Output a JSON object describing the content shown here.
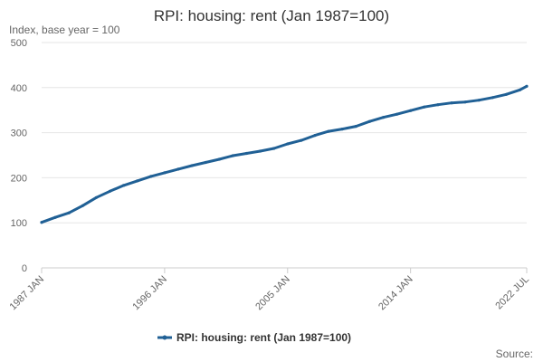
{
  "chart_data": {
    "type": "line",
    "title": "RPI: housing: rent (Jan 1987=100)",
    "ylabel": "Index, base year = 100",
    "ylim": [
      0,
      500
    ],
    "yticks": [
      0,
      100,
      200,
      300,
      400,
      500
    ],
    "xlim": [
      1987.0,
      2022.5
    ],
    "xticks": [
      {
        "label": "1987 JAN",
        "value": 1987.0
      },
      {
        "label": "1996 JAN",
        "value": 1996.0
      },
      {
        "label": "2005 JAN",
        "value": 2005.0
      },
      {
        "label": "2014 JAN",
        "value": 2014.0
      },
      {
        "label": "2022 JUL",
        "value": 2022.5
      }
    ],
    "grid": true,
    "legend_position": "bottom",
    "series": [
      {
        "name": "RPI: housing: rent (Jan 1987=100)",
        "color": "#206095",
        "x": [
          1987.0,
          1988.0,
          1989.0,
          1990.0,
          1991.0,
          1992.0,
          1993.0,
          1994.0,
          1995.0,
          1996.0,
          1997.0,
          1998.0,
          1999.0,
          2000.0,
          2001.0,
          2002.0,
          2003.0,
          2004.0,
          2005.0,
          2006.0,
          2007.0,
          2008.0,
          2009.0,
          2010.0,
          2011.0,
          2012.0,
          2013.0,
          2014.0,
          2015.0,
          2016.0,
          2017.0,
          2018.0,
          2019.0,
          2020.0,
          2021.0,
          2022.0,
          2022.5
        ],
        "values": [
          101,
          112,
          122,
          138,
          156,
          170,
          183,
          193,
          203,
          211,
          219,
          227,
          234,
          241,
          249,
          254,
          259,
          265,
          275,
          283,
          294,
          303,
          308,
          314,
          325,
          334,
          341,
          349,
          357,
          362,
          366,
          368,
          372,
          378,
          385,
          395,
          403
        ]
      }
    ]
  },
  "footer": {
    "source_label": "Source:"
  }
}
